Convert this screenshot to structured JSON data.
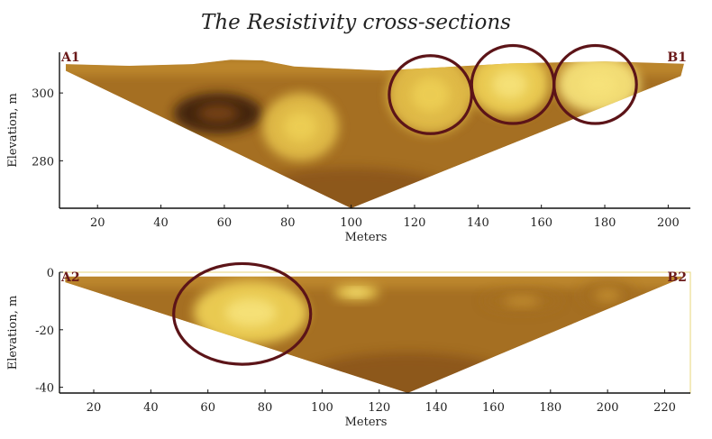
{
  "title": "The Resistivity cross-sections",
  "colors": {
    "palette": [
      "#3f2010",
      "#7a4418",
      "#a56f22",
      "#c59033",
      "#d6a83e",
      "#e2bd48",
      "#edcf55",
      "#f6e27a"
    ],
    "circle": "#5c1418",
    "profile_label": "#6b1a1a"
  },
  "chart_data": [
    {
      "type": "heatmap",
      "id": "section-1",
      "start_label": "A1",
      "end_label": "B1",
      "xlabel": "Meters",
      "ylabel": "Elevation, m",
      "xticks": [
        "20",
        "40",
        "60",
        "80",
        "100",
        "120",
        "140",
        "160",
        "180",
        "200"
      ],
      "xtick_values": [
        20,
        40,
        60,
        80,
        100,
        120,
        140,
        160,
        180,
        200
      ],
      "yticks": [
        "280",
        "300"
      ],
      "ytick_values": [
        280,
        300
      ],
      "xlim": [
        8,
        207
      ],
      "ylim": [
        266,
        312
      ],
      "surface": [
        [
          10,
          308.5
        ],
        [
          30,
          308
        ],
        [
          50,
          308.5
        ],
        [
          62,
          309.8
        ],
        [
          72,
          309.6
        ],
        [
          82,
          307.8
        ],
        [
          110,
          306.6
        ],
        [
          150,
          308.7
        ],
        [
          180,
          309.3
        ],
        [
          205,
          308.6
        ]
      ],
      "bottom_apex": [
        100,
        266
      ],
      "bottom_right": [
        204,
        305
      ],
      "anomalies": [
        {
          "x": 125,
          "y": 299.5,
          "rx": 13.5,
          "ry": 11.5,
          "level": 5
        },
        {
          "x": 150,
          "y": 302.5,
          "rx": 12.5,
          "ry": 9.5,
          "level": 6
        },
        {
          "x": 178,
          "y": 302.5,
          "rx": 13,
          "ry": 8.5,
          "level": 7
        },
        {
          "x": 58,
          "y": 294,
          "rx": 14,
          "ry": 6,
          "level": 0
        },
        {
          "x": 84,
          "y": 290,
          "rx": 12,
          "ry": 10,
          "level": 5
        }
      ],
      "highlight_circles": [
        {
          "x": 125,
          "y": 299.5,
          "rx": 13,
          "ry": 11.5
        },
        {
          "x": 151,
          "y": 302.5,
          "rx": 13,
          "ry": 11.5
        },
        {
          "x": 177,
          "y": 302.5,
          "rx": 13,
          "ry": 11.5
        }
      ]
    },
    {
      "type": "heatmap",
      "id": "section-2",
      "start_label": "A2",
      "end_label": "B2",
      "xlabel": "Meters",
      "ylabel": "Elevation, m",
      "xticks": [
        "20",
        "40",
        "60",
        "80",
        "100",
        "120",
        "140",
        "160",
        "180",
        "200",
        "220"
      ],
      "xtick_values": [
        20,
        40,
        60,
        80,
        100,
        120,
        140,
        160,
        180,
        200,
        220
      ],
      "yticks": [
        "-40",
        "-20",
        "0"
      ],
      "ytick_values": [
        -40,
        -20,
        0
      ],
      "xlim": [
        8,
        229
      ],
      "ylim": [
        -42,
        0
      ],
      "surface": [
        [
          10,
          -1.5
        ],
        [
          226,
          -1.5
        ]
      ],
      "bottom_apex": [
        130,
        -42
      ],
      "bottom_right": [
        226,
        -2
      ],
      "anomalies": [
        {
          "x": 75,
          "y": -14,
          "rx": 20,
          "ry": 11,
          "level": 6
        },
        {
          "x": 112,
          "y": -7,
          "rx": 8,
          "ry": 2.5,
          "level": 6
        },
        {
          "x": 170,
          "y": -10,
          "rx": 14,
          "ry": 4,
          "level": 2
        },
        {
          "x": 200,
          "y": -8,
          "rx": 10,
          "ry": 5,
          "level": 2
        }
      ],
      "highlight_circles": [
        {
          "x": 72,
          "y": -14.5,
          "rx": 24,
          "ry": 17.5
        }
      ]
    }
  ]
}
